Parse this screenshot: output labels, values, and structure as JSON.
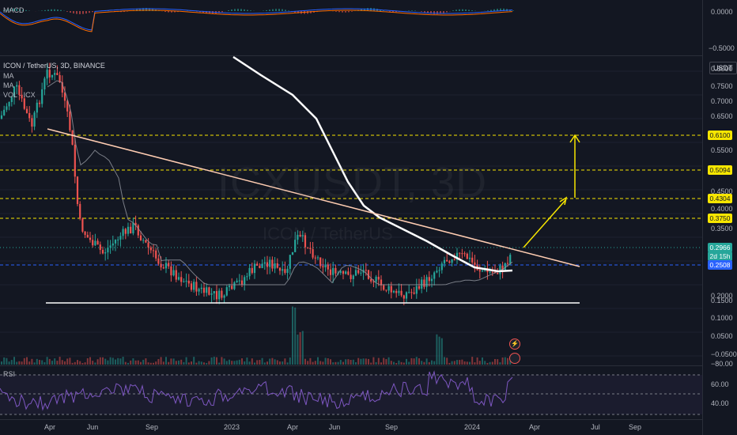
{
  "macd": {
    "title": "MACD",
    "ticks": [
      "0.0000",
      "−0.5000"
    ]
  },
  "main": {
    "legend_symbol": "ICON / TetherUS, 3D, BINANCE",
    "legend_ma1": "MA",
    "legend_ma2": "MA",
    "legend_vol": "VOL · ICX",
    "watermark_symbol": "ICXUSDT, 3D",
    "watermark_name": "ICON / TetherUS",
    "currency": "USDT",
    "ticks": [
      "0.8000",
      "0.7500",
      "0.7000",
      "0.6500",
      "0.5500",
      "0.4500",
      "0.4000",
      "0.3500",
      "0.2000",
      "0.1500",
      "0.1000",
      "0.0500",
      "−0.0500"
    ],
    "levels": [
      "0.6100",
      "0.5094",
      "0.4304",
      "0.3750"
    ],
    "current_price": "0.2966",
    "countdown": "2d 15h",
    "ma_price": "0.2508"
  },
  "rsi": {
    "title": "RSI",
    "ticks": [
      "−80.00",
      "60.00",
      "40.00"
    ]
  },
  "time_axis": [
    "Apr",
    "Jun",
    "Sep",
    "2023",
    "Apr",
    "Jun",
    "Sep",
    "2024",
    "Apr",
    "Jul",
    "Sep"
  ],
  "colors": {
    "bg": "#131722",
    "up": "#26a69a",
    "down": "#ef5350",
    "level": "#f7e600",
    "ma_slow": "#ffffff",
    "trendline": "#ffcdb2",
    "rsi": "#7e57c2",
    "price_tag": "#26a69a",
    "ma_tag": "#2962ff"
  }
}
